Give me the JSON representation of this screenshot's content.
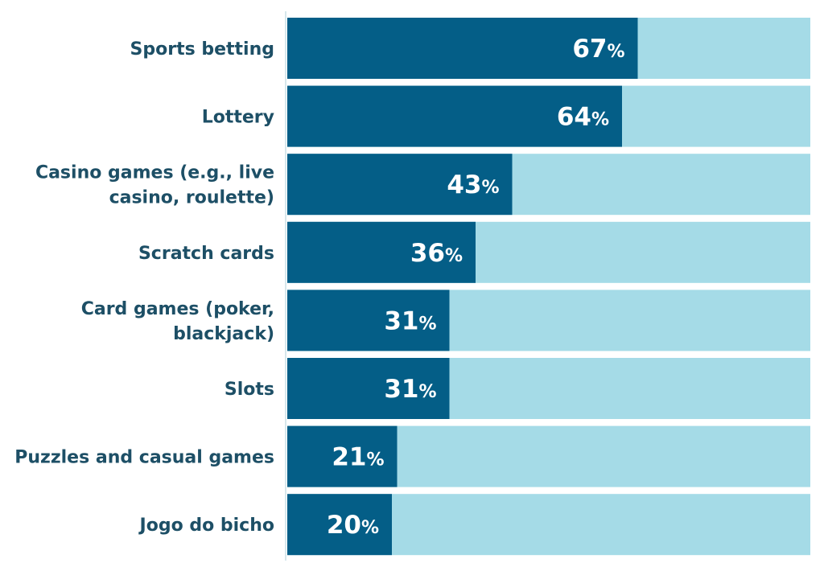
{
  "chart_data": {
    "type": "bar",
    "orientation": "horizontal",
    "stacked_background": true,
    "categories": [
      [
        "Sports betting"
      ],
      [
        "Lottery"
      ],
      [
        "Casino games (e.g., live",
        "casino, roulette)"
      ],
      [
        "Scratch cards"
      ],
      [
        "Card games (poker,",
        "blackjack)"
      ],
      [
        "Slots"
      ],
      [
        "Puzzles and casual games"
      ],
      [
        "Jogo do bicho"
      ]
    ],
    "values": [
      67,
      64,
      43,
      36,
      31,
      31,
      21,
      20
    ],
    "value_suffix": "%",
    "xlim": [
      0,
      100
    ],
    "title": "",
    "xlabel": "",
    "ylabel": "",
    "grid": false,
    "colors": {
      "bar": "#045e87",
      "background": "#a5dbe7",
      "label": "#1d4f66",
      "axis": "#c9dfe6"
    }
  }
}
